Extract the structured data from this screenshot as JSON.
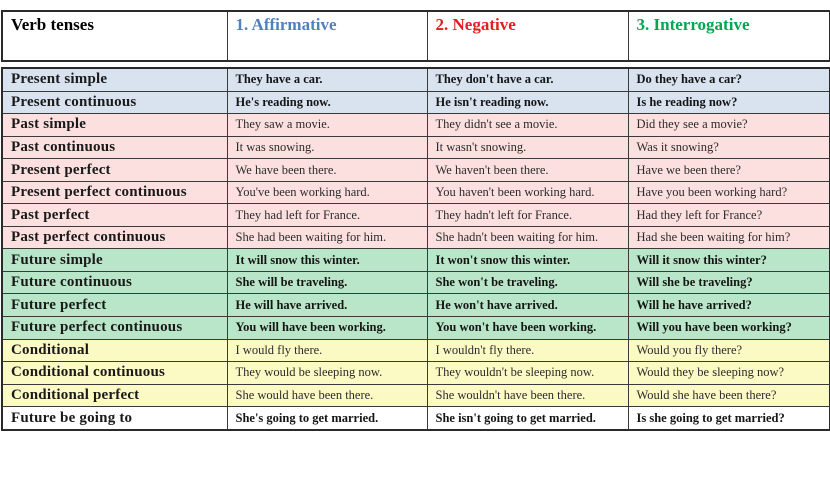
{
  "page": {
    "background": "#ffffff",
    "border_color": "#3a3a3a"
  },
  "table": {
    "columns": [
      {
        "label": "Verb tenses",
        "color": "#000000"
      },
      {
        "label": "1. Affirmative",
        "color": "#4f81bd"
      },
      {
        "label": "2. Negative",
        "color": "#e31e1e"
      },
      {
        "label": "3. Interrogative",
        "color": "#00a651"
      }
    ],
    "group_colors": {
      "present": "#d9e2ef",
      "past": "#fcdfdf",
      "future": "#b9e6c8",
      "conditional": "#fbf9c4",
      "plain": "#ffffff"
    },
    "rows": [
      {
        "tense": "Present simple",
        "affirmative": "They have a car.",
        "negative": "They don't have a car.",
        "interrogative": "Do they have a car?",
        "bg": "#d9e2ef",
        "bold": true
      },
      {
        "tense": "Present continuous",
        "affirmative": "He's reading now.",
        "negative": "He isn't reading now.",
        "interrogative": "Is he reading now?",
        "bg": "#d9e2ef",
        "bold": true
      },
      {
        "tense": "Past simple",
        "affirmative": "They saw a movie.",
        "negative": "They didn't see a movie.",
        "interrogative": "Did they see a movie?",
        "bg": "#fcdfdf",
        "bold": false
      },
      {
        "tense": "Past continuous",
        "affirmative": "It was snowing.",
        "negative": "It wasn't snowing.",
        "interrogative": "Was it snowing?",
        "bg": "#fcdfdf",
        "bold": false
      },
      {
        "tense": "Present perfect",
        "affirmative": "We have been there.",
        "negative": "We haven't been there.",
        "interrogative": "Have we been there?",
        "bg": "#fcdfdf",
        "bold": false
      },
      {
        "tense": "Present perfect continuous",
        "affirmative": "You've been working hard.",
        "negative": "You haven't been working hard.",
        "interrogative": "Have you been working hard?",
        "bg": "#fcdfdf",
        "bold": false
      },
      {
        "tense": "Past perfect",
        "affirmative": "They had left for France.",
        "negative": "They hadn't left for France.",
        "interrogative": "Had they left for France?",
        "bg": "#fcdfdf",
        "bold": false
      },
      {
        "tense": "Past perfect continuous",
        "affirmative": "She had been waiting for him.",
        "negative": "She hadn't been waiting for him.",
        "interrogative": "Had she been waiting for him?",
        "bg": "#fcdfdf",
        "bold": false
      },
      {
        "tense": "Future simple",
        "affirmative": "It will snow this winter.",
        "negative": "It won't snow this winter.",
        "interrogative": "Will it snow this winter?",
        "bg": "#b9e6c8",
        "bold": true
      },
      {
        "tense": "Future continuous",
        "affirmative": "She will be traveling.",
        "negative": "She won't be traveling.",
        "interrogative": "Will she be traveling?",
        "bg": "#b9e6c8",
        "bold": true
      },
      {
        "tense": "Future perfect",
        "affirmative": "He will have arrived.",
        "negative": "He won't have arrived.",
        "interrogative": "Will he have arrived?",
        "bg": "#b9e6c8",
        "bold": true
      },
      {
        "tense": "Future perfect continuous",
        "affirmative": "You will have been working.",
        "negative": "You won't have been working.",
        "interrogative": "Will you have been working?",
        "bg": "#b9e6c8",
        "bold": true
      },
      {
        "tense": "Conditional",
        "affirmative": "I would fly there.",
        "negative": "I wouldn't fly there.",
        "interrogative": "Would you fly there?",
        "bg": "#fbf9c4",
        "bold": false
      },
      {
        "tense": "Conditional continuous",
        "affirmative": "They would be sleeping now.",
        "negative": "They wouldn't be sleeping now.",
        "interrogative": "Would they be sleeping now?",
        "bg": "#fbf9c4",
        "bold": false
      },
      {
        "tense": "Conditional perfect",
        "affirmative": "She would have been there.",
        "negative": "She wouldn't have been there.",
        "interrogative": "Would she have been there?",
        "bg": "#fbf9c4",
        "bold": false
      },
      {
        "tense": "Future be going to",
        "affirmative": "She's going to get married.",
        "negative": "She isn't going to get married.",
        "interrogative": "Is she going to get married?",
        "bg": "#ffffff",
        "bold": true
      }
    ]
  }
}
